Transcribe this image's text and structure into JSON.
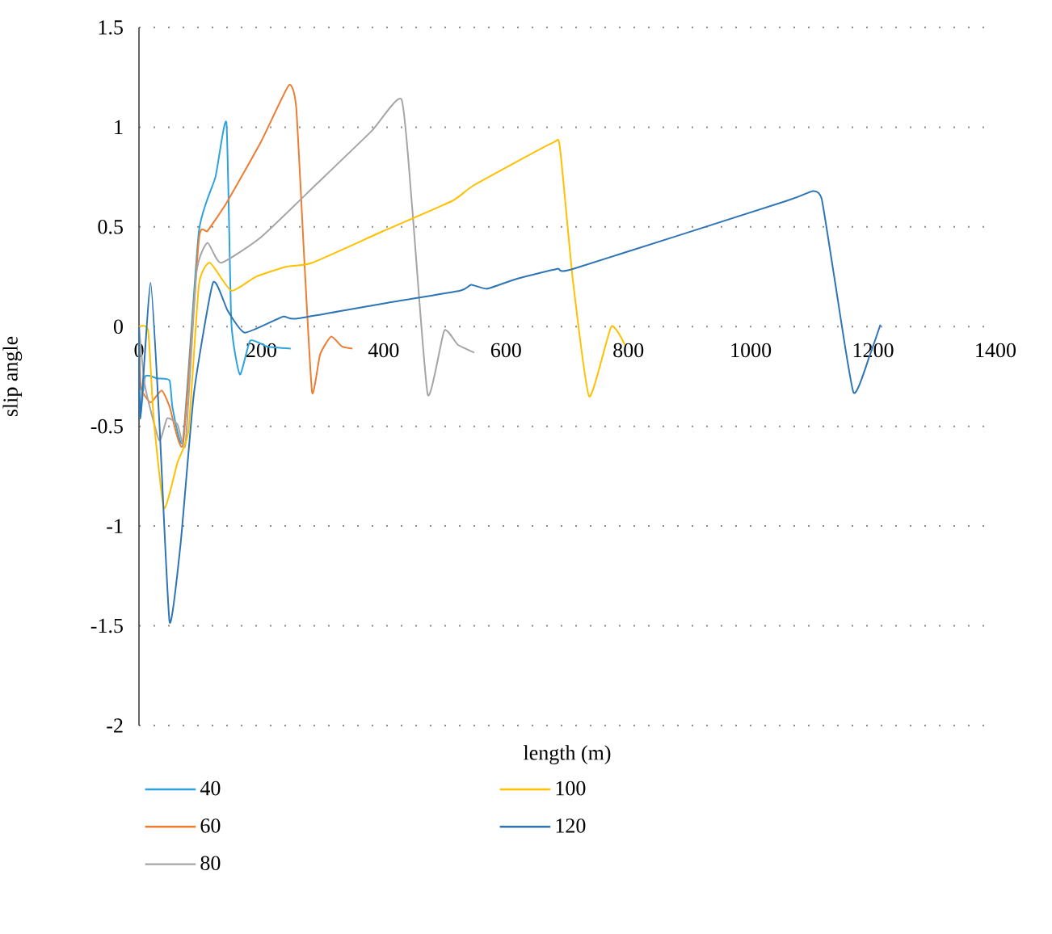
{
  "chart_data": {
    "type": "line",
    "xlabel": "length (m)",
    "ylabel": "slip angle",
    "xlim": [
      0,
      1400
    ],
    "xticks": [
      0,
      200,
      400,
      600,
      800,
      1000,
      1200,
      1400
    ],
    "ylim": [
      -2,
      1.5
    ],
    "yticks": [
      -2,
      -1.5,
      -1,
      -0.5,
      0,
      0.5,
      1,
      1.5
    ],
    "grid": "y",
    "legend": "bottom",
    "marker": "none",
    "line_style": "solid",
    "series": [
      {
        "name": "40",
        "color": "#2CA3DC",
        "x": [
          0,
          2,
          10,
          30,
          50,
          55,
          72,
          98,
          125,
          143,
          151,
          165,
          182,
          210,
          248
        ],
        "values": [
          0,
          -0.45,
          -0.25,
          -0.26,
          -0.27,
          -0.41,
          -0.57,
          0.48,
          0.75,
          1.02,
          0.02,
          -0.24,
          -0.07,
          -0.1,
          -0.11
        ]
      },
      {
        "name": "60",
        "color": "#ED7D31",
        "x": [
          0,
          3,
          19,
          37,
          50,
          72,
          98,
          112,
          143,
          200,
          245,
          257,
          270,
          283,
          296,
          314,
          332,
          349
        ],
        "values": [
          0,
          -0.3,
          -0.38,
          -0.32,
          -0.4,
          -0.59,
          0.44,
          0.48,
          0.62,
          0.93,
          1.21,
          1.1,
          0.35,
          -0.33,
          -0.14,
          -0.05,
          -0.1,
          -0.11
        ]
      },
      {
        "name": "80",
        "color": "#A5A5A5",
        "x": [
          0,
          10,
          33,
          46,
          63,
          76,
          94,
          112,
          134,
          200,
          292,
          380,
          429,
          446,
          472,
          499,
          521,
          548
        ],
        "values": [
          0,
          -0.3,
          -0.57,
          -0.46,
          -0.49,
          -0.59,
          0.27,
          0.42,
          0.32,
          0.45,
          0.72,
          0.98,
          1.14,
          0.62,
          -0.34,
          -0.02,
          -0.09,
          -0.13
        ]
      },
      {
        "name": "100",
        "color": "#FFC000",
        "x": [
          0,
          15,
          24,
          41,
          63,
          81,
          98,
          116,
          151,
          191,
          240,
          283,
          400,
          512,
          548,
          675,
          688,
          709,
          736,
          772,
          794
        ],
        "values": [
          0,
          -0.02,
          -0.46,
          -0.91,
          -0.68,
          -0.52,
          0.21,
          0.32,
          0.18,
          0.25,
          0.3,
          0.32,
          0.48,
          0.63,
          0.71,
          0.92,
          0.9,
          0.24,
          -0.35,
          0,
          -0.09
        ]
      },
      {
        "name": "120",
        "color": "#2E75B6",
        "x": [
          0,
          2,
          19,
          33,
          50,
          68,
          90,
          121,
          145,
          173,
          235,
          257,
          407,
          525,
          543,
          569,
          618,
          684,
          710,
          1058,
          1102,
          1116,
          1137,
          1168,
          1195,
          1212
        ],
        "values": [
          0,
          -0.46,
          0.22,
          -0.46,
          -1.48,
          -1.09,
          -0.33,
          0.22,
          0.08,
          -0.03,
          0.05,
          0.04,
          0.12,
          0.18,
          0.21,
          0.19,
          0.24,
          0.29,
          0.29,
          0.63,
          0.68,
          0.64,
          0.24,
          -0.33,
          -0.14,
          0.01
        ]
      }
    ]
  }
}
